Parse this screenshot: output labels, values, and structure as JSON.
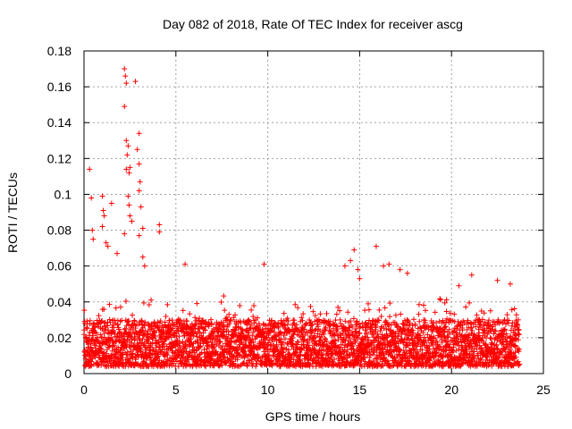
{
  "chart_data": {
    "type": "scatter",
    "title": "Day 082 of 2018, Rate Of TEC Index for receiver ascg",
    "xlabel": "GPS time / hours",
    "ylabel": "ROTI / TECUs",
    "xlim": [
      0,
      25
    ],
    "ylim": [
      0,
      0.18
    ],
    "xticks": [
      0,
      5,
      10,
      15,
      20,
      25
    ],
    "xtick_labels": [
      "0",
      "5",
      "10",
      "15",
      "20",
      "25"
    ],
    "yticks": [
      0,
      0.02,
      0.04,
      0.06,
      0.08,
      0.1,
      0.12,
      0.14,
      0.16,
      0.18
    ],
    "ytick_labels": [
      "0",
      "0.02",
      "0.04",
      "0.06",
      "0.08",
      "0.1",
      "0.12",
      "0.14",
      "0.16",
      "0.18"
    ],
    "grid": true,
    "marker": "+",
    "series_color": "#ff0000",
    "bulk_range": {
      "x": [
        0,
        23.7
      ],
      "y": [
        0.004,
        0.03
      ]
    },
    "notable_points": [
      {
        "x": 0.3,
        "y": 0.114
      },
      {
        "x": 0.4,
        "y": 0.098
      },
      {
        "x": 0.45,
        "y": 0.08
      },
      {
        "x": 0.5,
        "y": 0.075
      },
      {
        "x": 1.0,
        "y": 0.099
      },
      {
        "x": 1.05,
        "y": 0.091
      },
      {
        "x": 1.1,
        "y": 0.088
      },
      {
        "x": 1.0,
        "y": 0.082
      },
      {
        "x": 1.2,
        "y": 0.073
      },
      {
        "x": 1.3,
        "y": 0.071
      },
      {
        "x": 1.5,
        "y": 0.095
      },
      {
        "x": 1.8,
        "y": 0.067
      },
      {
        "x": 2.2,
        "y": 0.17
      },
      {
        "x": 2.25,
        "y": 0.166
      },
      {
        "x": 2.3,
        "y": 0.162
      },
      {
        "x": 2.2,
        "y": 0.149
      },
      {
        "x": 2.3,
        "y": 0.13
      },
      {
        "x": 2.4,
        "y": 0.127
      },
      {
        "x": 2.35,
        "y": 0.122
      },
      {
        "x": 2.3,
        "y": 0.114
      },
      {
        "x": 2.45,
        "y": 0.112
      },
      {
        "x": 2.5,
        "y": 0.115
      },
      {
        "x": 2.4,
        "y": 0.099
      },
      {
        "x": 2.45,
        "y": 0.094
      },
      {
        "x": 2.5,
        "y": 0.088
      },
      {
        "x": 2.6,
        "y": 0.085
      },
      {
        "x": 2.2,
        "y": 0.078
      },
      {
        "x": 2.8,
        "y": 0.163
      },
      {
        "x": 2.9,
        "y": 0.125
      },
      {
        "x": 3.0,
        "y": 0.134
      },
      {
        "x": 3.0,
        "y": 0.117
      },
      {
        "x": 3.05,
        "y": 0.107
      },
      {
        "x": 3.0,
        "y": 0.102
      },
      {
        "x": 3.1,
        "y": 0.093
      },
      {
        "x": 3.2,
        "y": 0.081
      },
      {
        "x": 3.0,
        "y": 0.077
      },
      {
        "x": 3.2,
        "y": 0.065
      },
      {
        "x": 3.3,
        "y": 0.06
      },
      {
        "x": 4.1,
        "y": 0.083
      },
      {
        "x": 4.1,
        "y": 0.079
      },
      {
        "x": 5.5,
        "y": 0.061
      },
      {
        "x": 9.8,
        "y": 0.061
      },
      {
        "x": 14.7,
        "y": 0.069
      },
      {
        "x": 14.5,
        "y": 0.063
      },
      {
        "x": 14.2,
        "y": 0.06
      },
      {
        "x": 14.9,
        "y": 0.058
      },
      {
        "x": 15.0,
        "y": 0.053
      },
      {
        "x": 15.9,
        "y": 0.071
      },
      {
        "x": 16.3,
        "y": 0.06
      },
      {
        "x": 16.6,
        "y": 0.061
      },
      {
        "x": 17.2,
        "y": 0.058
      },
      {
        "x": 17.6,
        "y": 0.056
      },
      {
        "x": 20.4,
        "y": 0.049
      },
      {
        "x": 21.1,
        "y": 0.055
      },
      {
        "x": 22.5,
        "y": 0.052
      },
      {
        "x": 23.2,
        "y": 0.05
      }
    ]
  }
}
